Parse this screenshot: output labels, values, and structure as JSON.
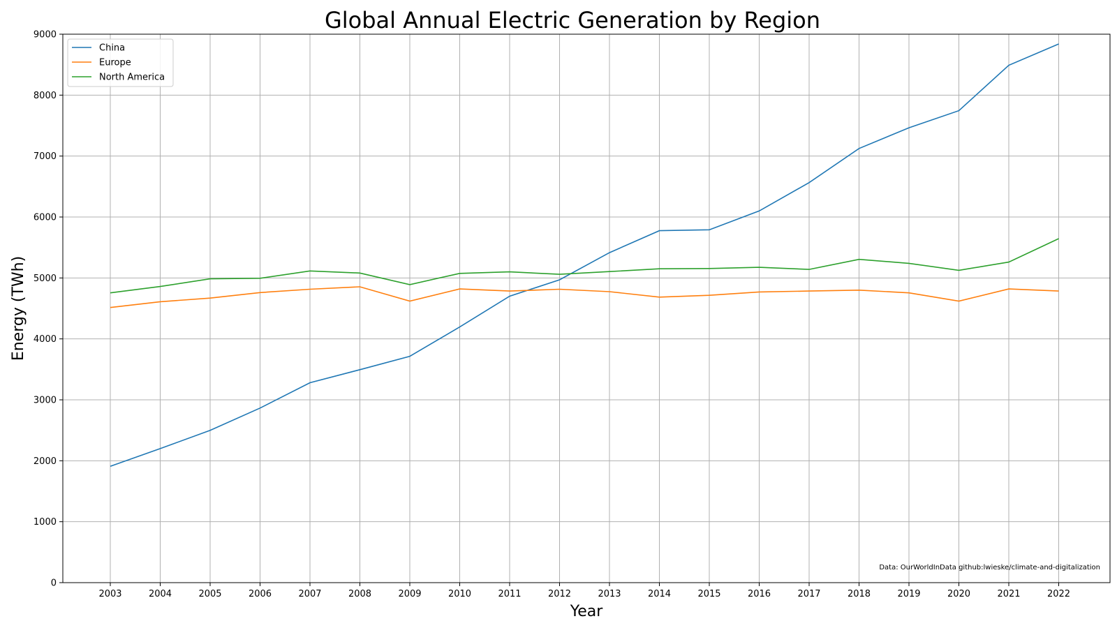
{
  "chart_data": {
    "type": "line",
    "title": "Global Annual Electric Generation by Region",
    "xlabel": "Year",
    "ylabel": "Energy (TWh)",
    "x": [
      "2003",
      "2004",
      "2005",
      "2006",
      "2007",
      "2008",
      "2009",
      "2010",
      "2011",
      "2012",
      "2013",
      "2014",
      "2015",
      "2016",
      "2017",
      "2018",
      "2019",
      "2020",
      "2021",
      "2022"
    ],
    "ylim": [
      0,
      9000
    ],
    "yticks": [
      "0",
      "1000",
      "2000",
      "3000",
      "4000",
      "5000",
      "6000",
      "7000",
      "8000",
      "9000"
    ],
    "grid": true,
    "legend_position": "top-left",
    "series": [
      {
        "name": "China",
        "color": "#1f77b4",
        "values": [
          1910,
          2200,
          2500,
          2865,
          3280,
          3495,
          3715,
          4195,
          4700,
          4970,
          5415,
          5775,
          5790,
          6100,
          6565,
          7125,
          7465,
          7745,
          8490,
          8840
        ]
      },
      {
        "name": "Europe",
        "color": "#ff7f0e",
        "values": [
          4515,
          4610,
          4670,
          4760,
          4815,
          4855,
          4620,
          4820,
          4785,
          4815,
          4775,
          4685,
          4715,
          4770,
          4785,
          4800,
          4755,
          4620,
          4820,
          4785
        ]
      },
      {
        "name": "North America",
        "color": "#2ca02c",
        "values": [
          4755,
          4860,
          4985,
          4995,
          5115,
          5080,
          4890,
          5075,
          5100,
          5060,
          5105,
          5150,
          5155,
          5175,
          5140,
          5305,
          5240,
          5125,
          5260,
          5645
        ]
      }
    ],
    "annotation": "Data: OurWorldInData   github:lwieske/climate-and-digitalization"
  }
}
